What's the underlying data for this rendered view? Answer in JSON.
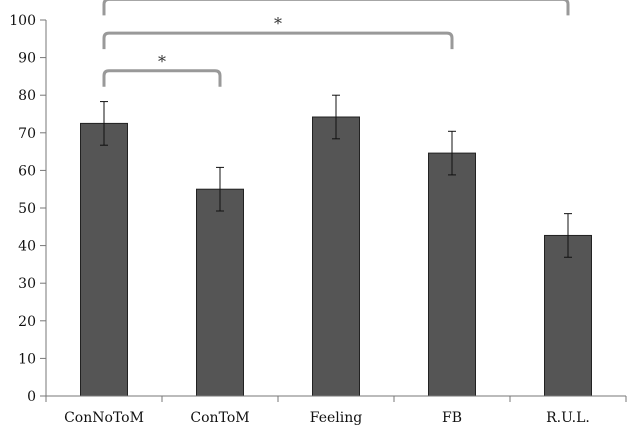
{
  "chart_data": {
    "type": "bar",
    "categories": [
      "ConNoToM",
      "ConToM",
      "Feeling",
      "FB",
      "R.U.L."
    ],
    "values": [
      72.5,
      55,
      74.2,
      64.6,
      42.7
    ],
    "errors": [
      5.8,
      5.8,
      5.8,
      5.8,
      5.8
    ],
    "ylim": [
      0,
      100
    ],
    "yticks": [
      0,
      10,
      20,
      30,
      40,
      50,
      60,
      70,
      80,
      90,
      100
    ],
    "yticks_labels": [
      "0",
      "10",
      "20",
      "30",
      "40",
      "50",
      "60",
      "70",
      "80",
      "90",
      "100"
    ],
    "bar_color": "#555555",
    "significance": [
      {
        "from": 0,
        "to": 1,
        "label": "*"
      },
      {
        "from": 0,
        "to": 3,
        "label": "*"
      },
      {
        "from": 0,
        "to": 4,
        "label": "*"
      }
    ],
    "grid": false,
    "title": "",
    "xlabel": "",
    "ylabel": ""
  }
}
